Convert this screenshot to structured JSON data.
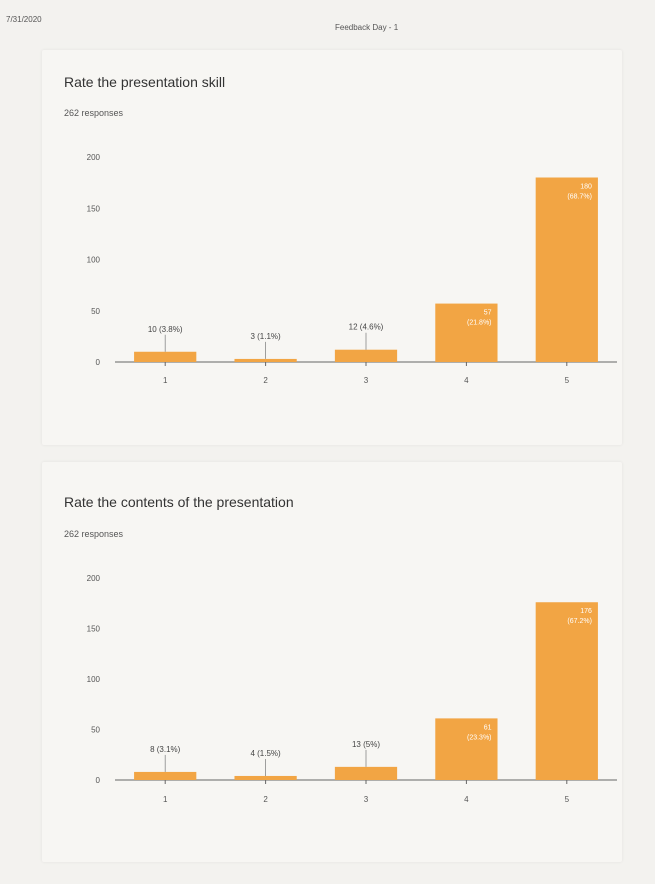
{
  "header": {
    "date": "7/31/2020",
    "title": "Feedback Day - 1"
  },
  "colors": {
    "bar": "#f2a544",
    "axis": "#666666",
    "background": "#f3f2ef"
  },
  "cards": [
    {
      "title": "Rate the presentation skill",
      "subtitle": "262 responses"
    },
    {
      "title": "Rate the contents of the presentation",
      "subtitle": "262 responses"
    }
  ],
  "chart_data": [
    {
      "type": "bar",
      "title": "Rate the presentation skill",
      "categories": [
        "1",
        "2",
        "3",
        "4",
        "5"
      ],
      "values": [
        10,
        3,
        12,
        57,
        180
      ],
      "data_labels": [
        "10 (3.8%)",
        "3 (1.1%)",
        "12 (4.6%)",
        "57 (21.8%)",
        "180 (68.7%)"
      ],
      "ylim": [
        0,
        200
      ],
      "yticks": [
        0,
        50,
        100,
        150,
        200
      ],
      "grid": false
    },
    {
      "type": "bar",
      "title": "Rate the contents of the presentation",
      "categories": [
        "1",
        "2",
        "3",
        "4",
        "5"
      ],
      "values": [
        8,
        4,
        13,
        61,
        176
      ],
      "data_labels": [
        "8 (3.1%)",
        "4 (1.5%)",
        "13 (5%)",
        "61 (23.3%)",
        "176 (67.2%)"
      ],
      "ylim": [
        0,
        200
      ],
      "yticks": [
        0,
        50,
        100,
        150,
        200
      ],
      "grid": false
    }
  ]
}
